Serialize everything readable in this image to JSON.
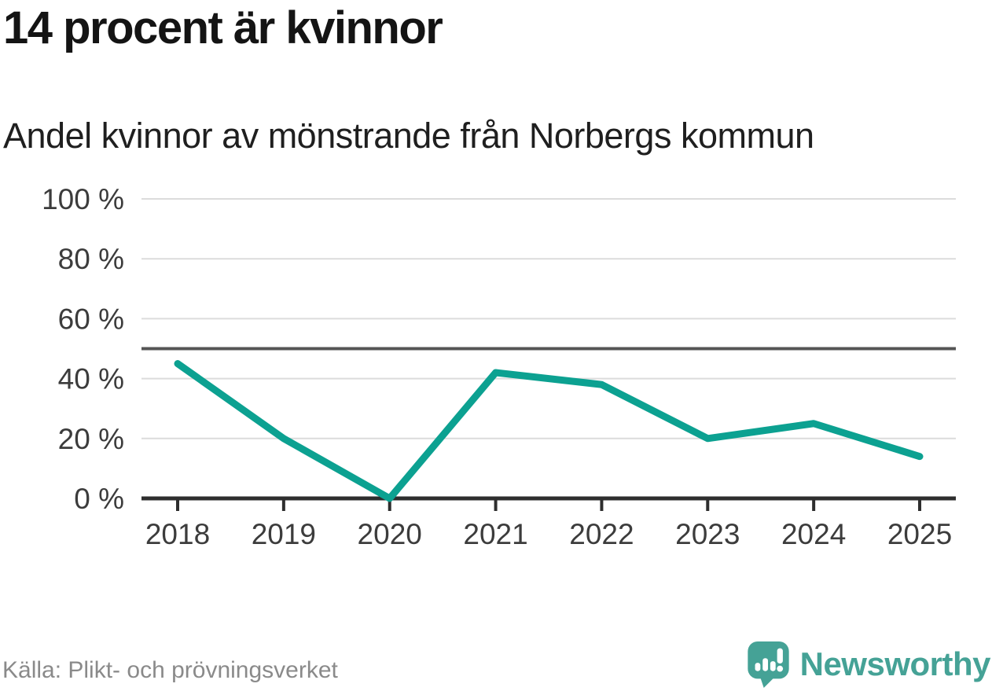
{
  "header": {
    "title": "14 procent är kvinnor",
    "subtitle": "Andel kvinnor av mönstrande från Norbergs kommun"
  },
  "chart_data": {
    "type": "line",
    "title": "14 procent är kvinnor",
    "subtitle": "Andel kvinnor av mönstrande från Norbergs kommun",
    "categories": [
      "2018",
      "2019",
      "2020",
      "2021",
      "2022",
      "2023",
      "2024",
      "2025"
    ],
    "series": [
      {
        "name": "Andel kvinnor av mönstrande",
        "values": [
          45,
          20,
          0,
          42,
          38,
          20,
          25,
          14
        ]
      }
    ],
    "unit": "%",
    "ylim": [
      0,
      100
    ],
    "yticks": [
      0,
      20,
      40,
      60,
      80,
      100
    ],
    "ytick_suffix": " %",
    "reference_line_y": 50,
    "grid": "horizontal",
    "legend": "none",
    "line_color": "#0CA191",
    "reference_line_color": "#555555",
    "grid_color": "#DCDCDC",
    "axis_color": "#2E2E2E",
    "tick_label_color": "#3C3C3C"
  },
  "footer": {
    "source": "Källa: Plikt- och prövningsverket",
    "brand_name": "Newsworthy",
    "brand_color": "#45A296"
  }
}
